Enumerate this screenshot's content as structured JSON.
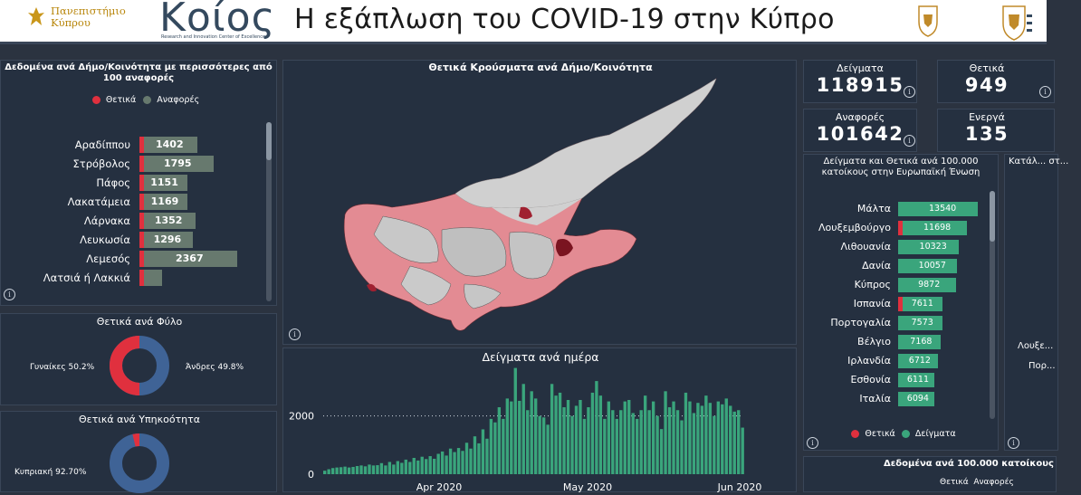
{
  "header": {
    "university_name_line1": "Πανεπιστήμιο",
    "university_name_line2": "Κύπρου",
    "koios_logo": "Κοίος",
    "koios_tagline": "Research and Innovation Center of Excellence",
    "title": "Η εξάπλωση του COVID-19 στην Κύπρο"
  },
  "colors": {
    "positive": "#e0303e",
    "reports": "#67796e",
    "samples": "#3aa57c",
    "panel": "#253040",
    "map_highlight": "#e8848c",
    "map_dark": "#8b1d2a"
  },
  "municipalities": {
    "title": "Δεδομένα ανά Δήμο/Κοινότητα με περισσότερες από 100 αναφορές",
    "legend_positive": "Θετικά",
    "legend_reports": "Αναφορές",
    "rows": [
      {
        "name": "Αραδίππου",
        "reports": 1402
      },
      {
        "name": "Στρόβολος",
        "reports": 1795
      },
      {
        "name": "Πάφος",
        "reports": 1151
      },
      {
        "name": "Λακατάμεια",
        "reports": 1169
      },
      {
        "name": "Λάρνακα",
        "reports": 1352
      },
      {
        "name": "Λευκωσία",
        "reports": 1296
      },
      {
        "name": "Λεμεσός",
        "reports": 2367
      },
      {
        "name": "Λατσιά ή Λακκιά",
        "reports": null
      }
    ]
  },
  "map": {
    "title": "Θετικά Κρούσματα ανά Δήμο/Κοινότητα"
  },
  "gender": {
    "title": "Θετικά ανά Φύλο",
    "women_label": "Γυναίκες 50.2%",
    "men_label": "Άνδρες 49.8%"
  },
  "citizenship": {
    "title": "Θετικά ανά Υπηκοότητα",
    "cypriot_label": "Κυπριακή 92.70%"
  },
  "kpis": {
    "samples_label": "Δείγματα",
    "samples_value": "118915",
    "positive_label": "Θετικά",
    "positive_value": "949",
    "reports_label": "Αναφορές",
    "reports_value": "101642",
    "active_label": "Ενεργά",
    "active_value": "135"
  },
  "eu": {
    "title": "Δείγματα και Θετικά ανά 100.000 κατοίκους στην Ευρωπαϊκή Ένωση",
    "legend_positive": "Θετικά",
    "legend_samples": "Δείγματα",
    "rows": [
      {
        "name": "Μάλτα",
        "samples": 13540
      },
      {
        "name": "Λουξεμβούργο",
        "samples": 11698
      },
      {
        "name": "Λιθουανία",
        "samples": 10323
      },
      {
        "name": "Δανία",
        "samples": 10057
      },
      {
        "name": "Κύπρος",
        "samples": 9872
      },
      {
        "name": "Ισπανία",
        "samples": 7611
      },
      {
        "name": "Πορτογαλία",
        "samples": 7573
      },
      {
        "name": "Βέλγιο",
        "samples": 7168
      },
      {
        "name": "Ιρλανδία",
        "samples": 6712
      },
      {
        "name": "Εσθονία",
        "samples": 6111
      },
      {
        "name": "Ιταλία",
        "samples": 6094
      }
    ]
  },
  "right_panel": {
    "title": "Κατάλ... στ...",
    "label1": "Λουξε...",
    "label2": "Πορ..."
  },
  "per100k": {
    "title": "Δεδομένα ανά 100.000 κατοίκους",
    "legend": "Θετικά  Αναφορές"
  },
  "chart_data": {
    "type": "bar",
    "title": "Δείγματα ανά ημέρα",
    "x_tick_labels": [
      "Apr 2020",
      "May 2020",
      "Jun 2020"
    ],
    "y_tick_labels": [
      "0",
      "2000"
    ],
    "ylim": [
      0,
      3700
    ],
    "reference_line": 2000,
    "values": [
      120,
      170,
      210,
      230,
      240,
      260,
      230,
      250,
      280,
      300,
      270,
      330,
      300,
      310,
      380,
      300,
      420,
      330,
      450,
      390,
      500,
      420,
      560,
      470,
      600,
      520,
      620,
      530,
      700,
      780,
      640,
      880,
      760,
      900,
      800,
      1080,
      880,
      1300,
      1060,
      1540,
      1220,
      1900,
      1780,
      2300,
      1900,
      2600,
      2500,
      3650,
      2520,
      3100,
      2200,
      2850,
      2600,
      2000,
      1950,
      1700,
      3100,
      2700,
      2800,
      2300,
      2550,
      2000,
      2350,
      2550,
      1900,
      2300,
      2800,
      3200,
      2700,
      1900,
      2500,
      2200,
      1900,
      2200,
      2500,
      2550,
      2100,
      1900,
      2200,
      2700,
      2200,
      2500,
      2000,
      1550,
      2850,
      2300,
      2500,
      2200,
      1850,
      2800,
      2500,
      2100,
      2450,
      2350,
      2700,
      2450,
      2000,
      2500,
      2400,
      2600,
      2350,
      2150,
      2200,
      1600
    ]
  }
}
